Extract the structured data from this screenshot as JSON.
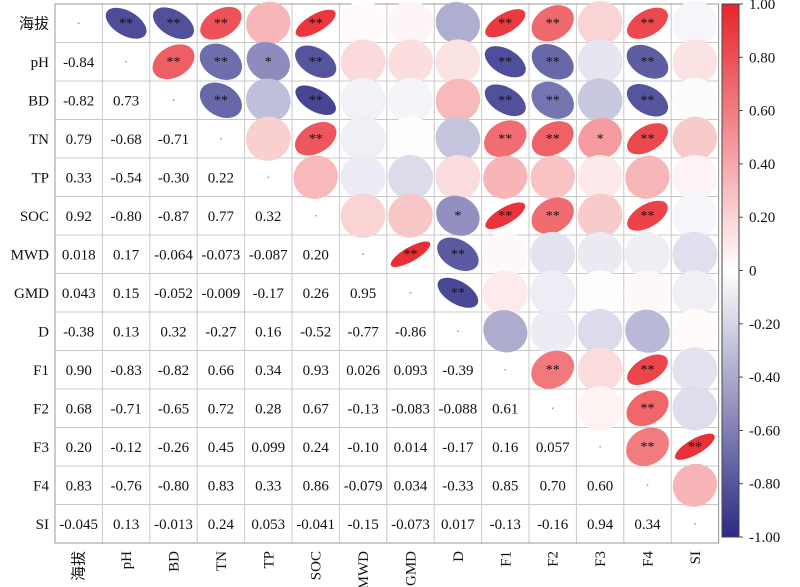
{
  "chart_data": {
    "type": "heatmap",
    "variables": [
      "海拔",
      "pH",
      "BD",
      "TN",
      "TP",
      "SOC",
      "MWD",
      "GMD",
      "D",
      "F1",
      "F2",
      "F3",
      "F4",
      "SI"
    ],
    "correlation": [
      [
        1,
        -0.84,
        -0.82,
        0.79,
        0.33,
        0.92,
        0.018,
        0.043,
        -0.38,
        0.9,
        0.68,
        0.2,
        0.83,
        -0.045
      ],
      [
        -0.84,
        1,
        0.73,
        -0.68,
        -0.54,
        -0.8,
        0.17,
        0.15,
        0.13,
        -0.83,
        -0.71,
        -0.12,
        -0.76,
        0.13
      ],
      [
        -0.82,
        0.73,
        1,
        -0.71,
        -0.3,
        -0.87,
        -0.064,
        -0.052,
        0.32,
        -0.82,
        -0.65,
        -0.26,
        -0.8,
        -0.013
      ],
      [
        0.79,
        -0.68,
        -0.71,
        1,
        0.22,
        0.77,
        -0.073,
        -0.009,
        -0.27,
        0.66,
        0.72,
        0.45,
        0.83,
        0.24
      ],
      [
        0.33,
        -0.54,
        -0.3,
        0.22,
        1,
        0.32,
        -0.087,
        -0.17,
        0.16,
        0.34,
        0.28,
        0.099,
        0.33,
        0.053
      ],
      [
        0.92,
        -0.8,
        -0.87,
        0.77,
        0.32,
        1,
        0.2,
        0.26,
        -0.52,
        0.93,
        0.67,
        0.24,
        0.86,
        -0.041
      ],
      [
        0.018,
        0.17,
        -0.064,
        -0.073,
        -0.087,
        0.2,
        1,
        0.95,
        -0.77,
        0.026,
        -0.13,
        -0.1,
        -0.079,
        -0.15
      ],
      [
        0.043,
        0.15,
        -0.052,
        -0.009,
        -0.17,
        0.26,
        0.95,
        1,
        -0.86,
        0.093,
        -0.083,
        0.014,
        0.034,
        -0.073
      ],
      [
        -0.38,
        0.13,
        0.32,
        -0.27,
        0.16,
        -0.52,
        -0.77,
        -0.86,
        1,
        -0.39,
        -0.088,
        -0.17,
        -0.33,
        0.017
      ],
      [
        0.9,
        -0.83,
        -0.82,
        0.66,
        0.34,
        0.93,
        0.026,
        0.093,
        -0.39,
        1,
        0.61,
        0.16,
        0.85,
        -0.13
      ],
      [
        0.68,
        -0.71,
        -0.65,
        0.72,
        0.28,
        0.67,
        -0.13,
        -0.083,
        -0.088,
        0.61,
        1,
        0.057,
        0.7,
        -0.16
      ],
      [
        0.2,
        -0.12,
        -0.26,
        0.45,
        0.099,
        0.24,
        -0.1,
        0.014,
        -0.17,
        0.16,
        0.057,
        1,
        0.6,
        0.94
      ],
      [
        0.83,
        -0.76,
        -0.8,
        0.83,
        0.33,
        0.86,
        -0.079,
        0.034,
        -0.33,
        0.85,
        0.7,
        0.6,
        1,
        0.34
      ],
      [
        -0.045,
        0.13,
        -0.013,
        0.24,
        0.053,
        -0.041,
        -0.15,
        -0.073,
        0.017,
        -0.13,
        -0.16,
        0.94,
        0.34,
        1
      ]
    ],
    "upper_triangle_labels": [
      [
        "",
        "**",
        "**",
        "**",
        "",
        "**",
        "",
        "",
        "",
        "**",
        "**",
        "",
        "**",
        ""
      ],
      [
        "",
        "",
        "**",
        "**",
        "*",
        "**",
        "",
        "",
        "",
        "**",
        "**",
        "",
        "**",
        ""
      ],
      [
        "",
        "",
        "",
        "**",
        "",
        "**",
        "",
        "",
        "",
        "**",
        "**",
        "",
        "**",
        ""
      ],
      [
        "",
        "",
        "",
        "",
        "",
        "**",
        "",
        "",
        "",
        "**",
        "**",
        "*",
        "**",
        ""
      ],
      [
        "",
        "",
        "",
        "",
        "",
        "",
        "",
        "",
        "",
        "",
        "",
        "",
        "",
        ""
      ],
      [
        "",
        "",
        "",
        "",
        "",
        "",
        "",
        "",
        "*",
        "**",
        "**",
        "",
        "**",
        ""
      ],
      [
        "",
        "",
        "",
        "",
        "",
        "",
        "",
        "**",
        "**",
        "",
        "",
        "",
        "",
        ""
      ],
      [
        "",
        "",
        "",
        "",
        "",
        "",
        "",
        "",
        "**",
        "",
        "",
        "",
        "",
        ""
      ],
      [
        "",
        "",
        "",
        "",
        "",
        "",
        "",
        "",
        "",
        "",
        "",
        "",
        "",
        ""
      ],
      [
        "",
        "",
        "",
        "",
        "",
        "",
        "",
        "",
        "",
        "",
        "**",
        "",
        "**",
        ""
      ],
      [
        "",
        "",
        "",
        "",
        "",
        "",
        "",
        "",
        "",
        "",
        "",
        "",
        "**",
        ""
      ],
      [
        "",
        "",
        "",
        "",
        "",
        "",
        "",
        "",
        "",
        "",
        "",
        "",
        "**",
        "**"
      ],
      [
        "",
        "",
        "",
        "",
        "",
        "",
        "",
        "",
        "",
        "",
        "",
        "",
        "",
        ""
      ],
      [
        "",
        "",
        "",
        "",
        "",
        "",
        "",
        "",
        "",
        "",
        "",
        "",
        "",
        ""
      ]
    ],
    "lower_triangle_text": [
      [
        "",
        "",
        "",
        "",
        "",
        "",
        "",
        "",
        "",
        "",
        "",
        "",
        "",
        ""
      ],
      [
        "-0.84",
        "",
        "",
        "",
        "",
        "",
        "",
        "",
        "",
        "",
        "",
        "",
        "",
        ""
      ],
      [
        "-0.82",
        "0.73",
        "",
        "",
        "",
        "",
        "",
        "",
        "",
        "",
        "",
        "",
        "",
        ""
      ],
      [
        "0.79",
        "-0.68",
        "-0.71",
        "",
        "",
        "",
        "",
        "",
        "",
        "",
        "",
        "",
        "",
        ""
      ],
      [
        "0.33",
        "-0.54",
        "-0.30",
        "0.22",
        "",
        "",
        "",
        "",
        "",
        "",
        "",
        "",
        "",
        ""
      ],
      [
        "0.92",
        "-0.80",
        "-0.87",
        "0.77",
        "0.32",
        "",
        "",
        "",
        "",
        "",
        "",
        "",
        "",
        ""
      ],
      [
        "0.018",
        "0.17",
        "-0.064",
        "-0.073",
        "-0.087",
        "0.20",
        "",
        "",
        "",
        "",
        "",
        "",
        "",
        ""
      ],
      [
        "0.043",
        "0.15",
        "-0.052",
        "-0.009",
        "-0.17",
        "0.26",
        "0.95",
        "",
        "",
        "",
        "",
        "",
        "",
        ""
      ],
      [
        "-0.38",
        "0.13",
        "0.32",
        "-0.27",
        "0.16",
        "-0.52",
        "-0.77",
        "-0.86",
        "",
        "",
        "",
        "",
        "",
        ""
      ],
      [
        "0.90",
        "-0.83",
        "-0.82",
        "0.66",
        "0.34",
        "0.93",
        "0.026",
        "0.093",
        "-0.39",
        "",
        "",
        "",
        "",
        ""
      ],
      [
        "0.68",
        "-0.71",
        "-0.65",
        "0.72",
        "0.28",
        "0.67",
        "-0.13",
        "-0.083",
        "-0.088",
        "0.61",
        "",
        "",
        "",
        ""
      ],
      [
        "0.20",
        "-0.12",
        "-0.26",
        "0.45",
        "0.099",
        "0.24",
        "-0.10",
        "0.014",
        "-0.17",
        "0.16",
        "0.057",
        "",
        "",
        ""
      ],
      [
        "0.83",
        "-0.76",
        "-0.80",
        "0.83",
        "0.33",
        "0.86",
        "-0.079",
        "0.034",
        "-0.33",
        "0.85",
        "0.70",
        "0.60",
        "",
        ""
      ],
      [
        "-0.045",
        "0.13",
        "-0.013",
        "0.24",
        "0.053",
        "-0.041",
        "-0.15",
        "-0.073",
        "0.017",
        "-0.13",
        "-0.16",
        "0.94",
        "0.34",
        ""
      ]
    ],
    "colorbar": {
      "range": [
        -1.0,
        1.0
      ],
      "ticks": [
        "1.00",
        "0.80",
        "0.60",
        "0.40",
        "0.20",
        "0",
        "-0.20",
        "-0.40",
        "-0.60",
        "-0.80",
        "-1.00"
      ],
      "colors": {
        "negative": "#2b2a85",
        "zero": "#ffffff",
        "positive": "#e8242b"
      }
    },
    "grid": true
  }
}
